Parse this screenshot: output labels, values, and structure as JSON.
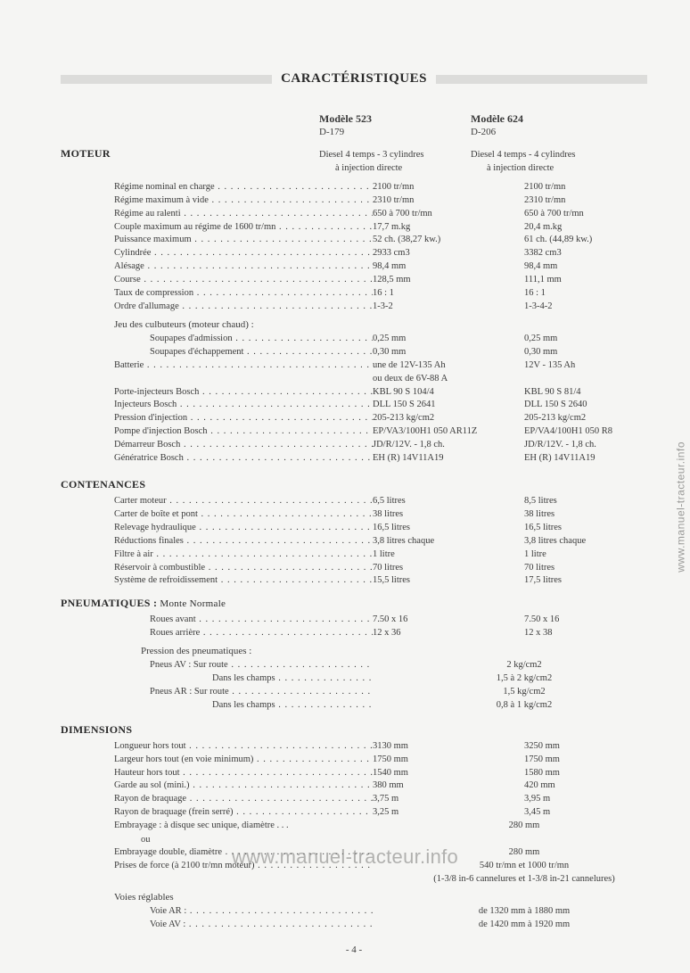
{
  "title": "CARACTÉRISTIQUES",
  "page_number": "- 4 -",
  "watermark": "www.manuel-tracteur.info",
  "colors": {
    "bar": "#dcdcda",
    "text": "#3a3a3a",
    "bg": "#f5f5f3"
  },
  "models": {
    "m523": {
      "name": "Modèle 523",
      "code": "D-179",
      "desc1": "Diesel 4 temps - 3 cylindres",
      "desc2": "à injection directe"
    },
    "m624": {
      "name": "Modèle 624",
      "code": "D-206",
      "desc1": "Diesel 4 temps - 4 cylindres",
      "desc2": "à injection directe"
    }
  },
  "sections": {
    "moteur": "MOTEUR",
    "contenances": "CONTENANCES",
    "pneumatiques": "PNEUMATIQUES :",
    "pneumatiques_sub": " Monte Normale",
    "dimensions": "DIMENSIONS"
  },
  "moteur_rows": [
    {
      "label": "Régime nominal en charge",
      "v1": "2100 tr/mn",
      "v2": "2100 tr/mn"
    },
    {
      "label": "Régime maximum à vide",
      "v1": "2310 tr/mn",
      "v2": "2310 tr/mn"
    },
    {
      "label": "Régime au ralenti",
      "v1": "650 à 700 tr/mn",
      "v2": "650 à 700 tr/mn"
    },
    {
      "label": "Couple maximum au régime de 1600 tr/mn",
      "v1": "17,7 m.kg",
      "v2": "20,4 m.kg"
    },
    {
      "label": "Puissance maximum",
      "v1": "52 ch. (38,27 kw.)",
      "v2": "61 ch. (44,89 kw.)"
    },
    {
      "label": "Cylindrée",
      "v1": "2933 cm3",
      "v2": "3382 cm3"
    },
    {
      "label": "Alésage",
      "v1": "98,4 mm",
      "v2": "98,4 mm"
    },
    {
      "label": "Course",
      "v1": "128,5 mm",
      "v2": "111,1 mm"
    },
    {
      "label": "Taux de compression",
      "v1": "16 : 1",
      "v2": "16 : 1"
    },
    {
      "label": "Ordre d'allumage",
      "v1": "1-3-2",
      "v2": "1-3-4-2"
    }
  ],
  "culbuteurs_head": "Jeu des culbuteurs (moteur chaud) :",
  "culbuteurs_rows": [
    {
      "label": "Soupapes d'admission",
      "v1": "0,25 mm",
      "v2": "0,25 mm"
    },
    {
      "label": "Soupapes d'échappement",
      "v1": "0,30 mm",
      "v2": "0,30 mm"
    }
  ],
  "batterie": {
    "label": "Batterie",
    "v1a": "une de 12V-135 Ah",
    "v1b": "ou deux de 6V-88 A",
    "v2": "12V - 135 Ah"
  },
  "moteur_rows2": [
    {
      "label": "Porte-injecteurs Bosch",
      "v1": "KBL 90 S 104/4",
      "v2": "KBL 90 S 81/4"
    },
    {
      "label": "Injecteurs Bosch",
      "v1": "DLL 150 S 2641",
      "v2": "DLL  150 S 2640"
    },
    {
      "label": "Pression d'injection",
      "v1": "205-213 kg/cm2",
      "v2": "205-213 kg/cm2"
    },
    {
      "label": "Pompe d'injection Bosch",
      "v1": "EP/VA3/100H1 050 AR11Z",
      "v2": "EP/VA4/100H1 050 R8"
    },
    {
      "label": "Démarreur Bosch",
      "v1": "JD/R/12V. - 1,8 ch.",
      "v2": "JD/R/12V. - 1,8 ch."
    },
    {
      "label": "Génératrice Bosch",
      "v1": "EH (R) 14V11A19",
      "v2": "EH (R) 14V11A19"
    }
  ],
  "contenances_rows": [
    {
      "label": "Carter moteur",
      "v1": "6,5 litres",
      "v2": "8,5 litres"
    },
    {
      "label": "Carter de boîte et pont",
      "v1": "38 litres",
      "v2": "38 litres"
    },
    {
      "label": "Relevage hydraulique",
      "v1": "16,5 litres",
      "v2": "16,5 litres"
    },
    {
      "label": "Réductions finales",
      "v1": "3,8 litres chaque",
      "v2": "3,8 litres chaque"
    },
    {
      "label": "Filtre à air",
      "v1": "1 litre",
      "v2": "1 litre"
    },
    {
      "label": "Réservoir à combustible",
      "v1": "70 litres",
      "v2": "70 litres"
    },
    {
      "label": "Système de refroidissement",
      "v1": "15,5 litres",
      "v2": "17,5 litres"
    }
  ],
  "pneu_rows": [
    {
      "label": "Roues avant",
      "v1": "7.50 x 16",
      "v2": "7.50 x 16"
    },
    {
      "label": "Roues arrière",
      "v1": "12 x 36",
      "v2": "12 x 38"
    }
  ],
  "pression_head": "Pression des pneumatiques :",
  "pression_rows": [
    {
      "label": "Pneus AV : Sur route",
      "merged": "2 kg/cm2"
    },
    {
      "label": "Dans les champs",
      "merged": "1,5 à 2 kg/cm2",
      "deep": true
    },
    {
      "label": "Pneus AR : Sur route",
      "merged": "1,5 kg/cm2"
    },
    {
      "label": "Dans les champs",
      "merged": "0,8 à 1 kg/cm2",
      "deep": true
    }
  ],
  "dimensions_rows": [
    {
      "label": "Longueur hors tout",
      "v1": "3130 mm",
      "v2": "3250 mm"
    },
    {
      "label": "Largeur hors tout (en voie minimum)",
      "v1": "1750 mm",
      "v2": "1750 mm"
    },
    {
      "label": "Hauteur hors tout",
      "v1": "1540 mm",
      "v2": "1580 mm"
    },
    {
      "label": "Garde au sol (mini.)",
      "v1": "380 mm",
      "v2": "420 mm"
    },
    {
      "label": "Rayon de braquage",
      "v1": "3,75 m",
      "v2": "3,95 m"
    },
    {
      "label": "Rayon de braquage (frein serré)",
      "v1": "3,25 m",
      "v2": "3,45 m"
    }
  ],
  "embrayage1": {
    "label": "Embrayage : à disque sec unique, diamètre . . .",
    "merged": "280 mm"
  },
  "or_text": "ou",
  "embrayage2": {
    "label": "Embrayage double, diamètre",
    "merged": "280 mm"
  },
  "prises": {
    "label": "Prises de force (à 2100 tr/mn moteur)",
    "merged": "540 tr/mn et 1000 tr/mn",
    "note": "(1-3/8 in-6 cannelures et 1-3/8 in-21 cannelures)"
  },
  "voies_head": "Voies réglables",
  "voies_rows": [
    {
      "label": "Voie AR :",
      "merged": "de 1320 mm à 1880 mm"
    },
    {
      "label": "Voie AV :",
      "merged": "de 1420 mm à 1920 mm"
    }
  ]
}
